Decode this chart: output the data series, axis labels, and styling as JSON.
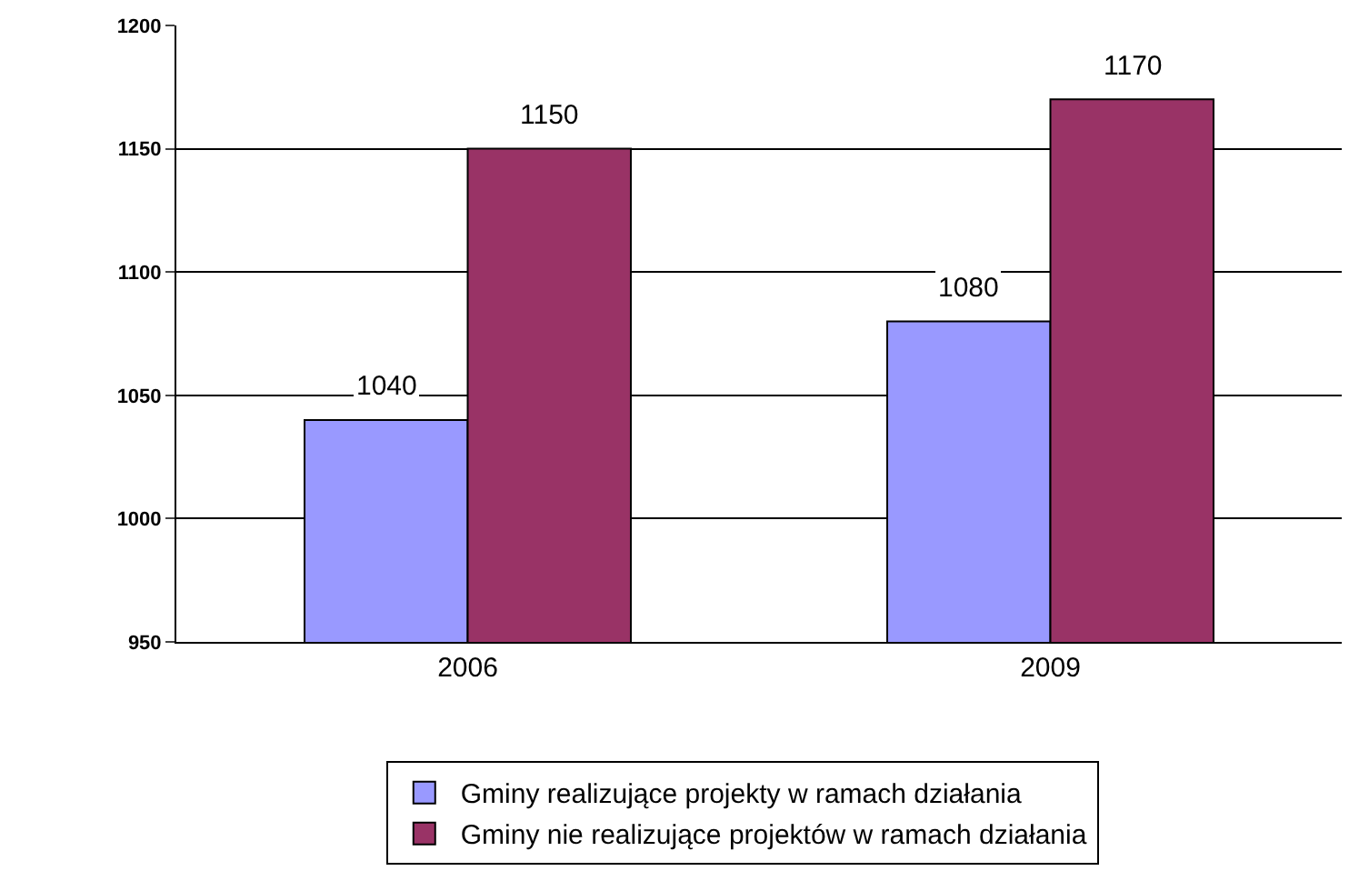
{
  "chart_data": {
    "type": "bar",
    "categories": [
      "2006",
      "2009"
    ],
    "series": [
      {
        "name": "Gminy realizujące projekty w ramach działania",
        "color": "#9999ff",
        "values": [
          1040,
          1080
        ]
      },
      {
        "name": "Gminy nie realizujące projektów w ramach działania",
        "color": "#993366",
        "values": [
          1150,
          1170
        ]
      }
    ],
    "ylim": [
      950,
      1200
    ],
    "yticks": [
      950,
      1000,
      1050,
      1100,
      1150,
      1200
    ],
    "grid": "y",
    "legend": "bottom",
    "data_labels": true
  }
}
